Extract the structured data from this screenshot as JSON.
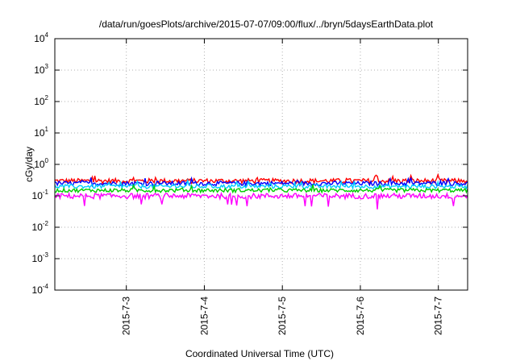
{
  "chart_data": {
    "type": "line",
    "title": "/data/run/goesPlots/archive/2015-07-07/09:00/flux/../bryn/5daysEarthData.plot",
    "xlabel": "Coordinated Universal Time (UTC)",
    "ylabel": "cGy/day",
    "xlim": [
      "2015-07-02T02:00",
      "2015-07-07T09:00"
    ],
    "ylim": [
      0.0001,
      10000
    ],
    "yscale": "log",
    "grid": true,
    "x_ticks": [
      "2015-7-3",
      "2015-7-4",
      "2015-7-5",
      "2015-7-6",
      "2015-7-7"
    ],
    "y_ticks": [
      {
        "base": "10",
        "exp": "-4",
        "value": 0.0001
      },
      {
        "base": "10",
        "exp": "-3",
        "value": 0.001
      },
      {
        "base": "10",
        "exp": "-2",
        "value": 0.01
      },
      {
        "base": "10",
        "exp": "-1",
        "value": 0.1
      },
      {
        "base": "10",
        "exp": "0",
        "value": 1
      },
      {
        "base": "10",
        "exp": "1",
        "value": 10
      },
      {
        "base": "10",
        "exp": "2",
        "value": 100
      },
      {
        "base": "10",
        "exp": "3",
        "value": 1000
      },
      {
        "base": "10",
        "exp": "4",
        "value": 10000
      }
    ],
    "series": [
      {
        "color": "#ff0000",
        "approx_value": 0.3,
        "noise": 0.18
      },
      {
        "color": "#0000ff",
        "approx_value": 0.25,
        "noise": 0.16
      },
      {
        "color": "#00ccff",
        "approx_value": 0.2,
        "noise": 0.15
      },
      {
        "color": "#00cc00",
        "approx_value": 0.15,
        "noise": 0.14
      },
      {
        "color": "#ff00ff",
        "approx_value": 0.1,
        "noise": 0.2
      }
    ]
  }
}
